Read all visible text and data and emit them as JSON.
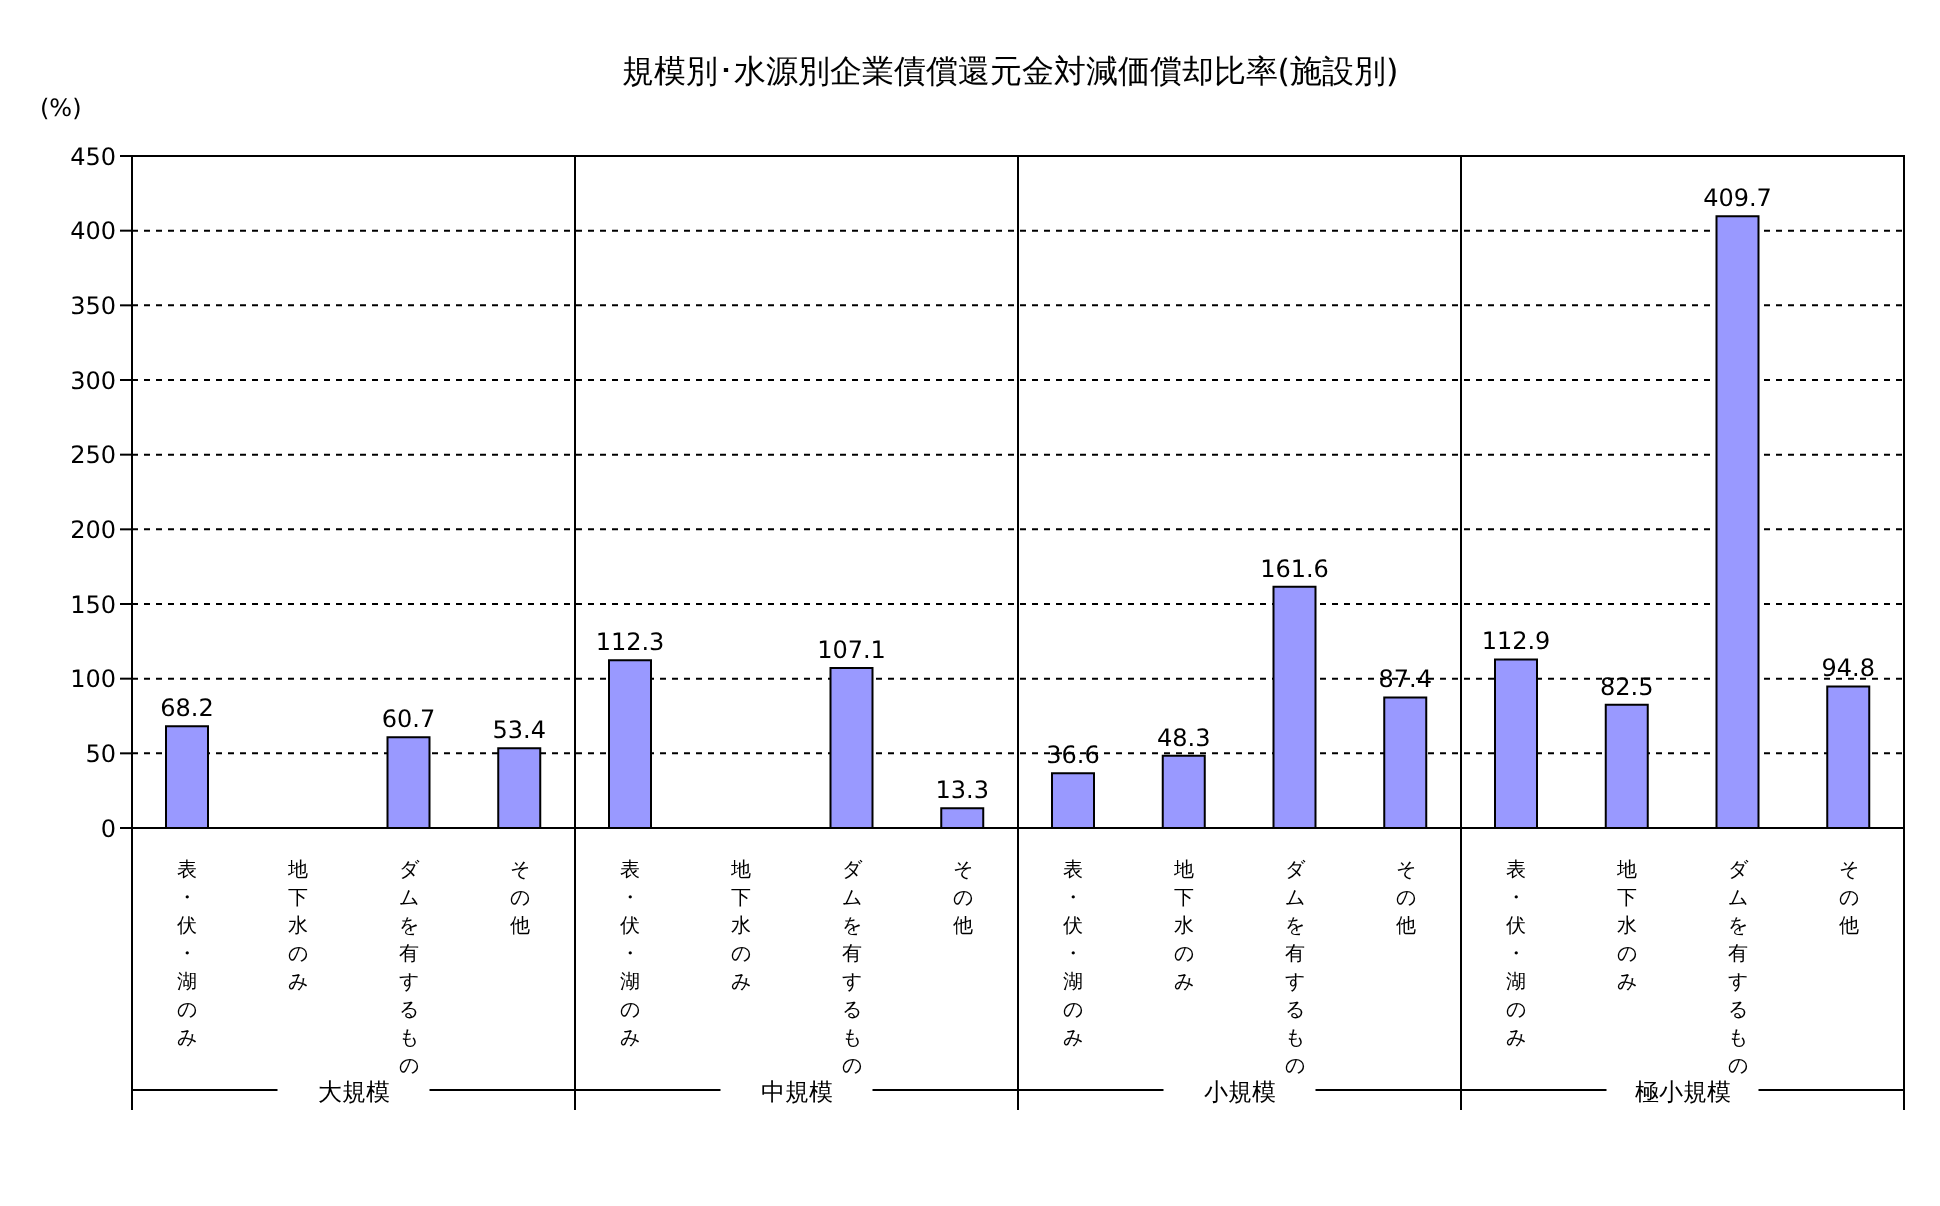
{
  "chart_data": {
    "type": "bar",
    "title": "規模別･水源別企業債償還元金対減価償却比率(施設別)",
    "ylabel": "(%)",
    "categories": [
      "表・伏・湖のみ",
      "地下水のみ",
      "ダムを有するもの",
      "その他",
      "表・伏・湖のみ",
      "地下水のみ",
      "ダムを有するもの",
      "その他",
      "表・伏・湖のみ",
      "地下水のみ",
      "ダムを有するもの",
      "その他",
      "表・伏・湖のみ",
      "地下水のみ",
      "ダムを有するもの",
      "その他"
    ],
    "values": [
      68.2,
      null,
      60.7,
      53.4,
      112.3,
      null,
      107.1,
      13.3,
      36.6,
      48.3,
      161.6,
      87.4,
      112.9,
      82.5,
      409.7,
      94.8
    ],
    "color": "#9999ff",
    "ylim": [
      0,
      450
    ],
    "yticks": [
      0,
      50,
      100,
      150,
      200,
      250,
      300,
      350,
      400,
      450
    ],
    "grid": "y",
    "data_labels": true,
    "annotations": [
      "大規模",
      "中規模",
      "小規模",
      "極小規模"
    ]
  }
}
